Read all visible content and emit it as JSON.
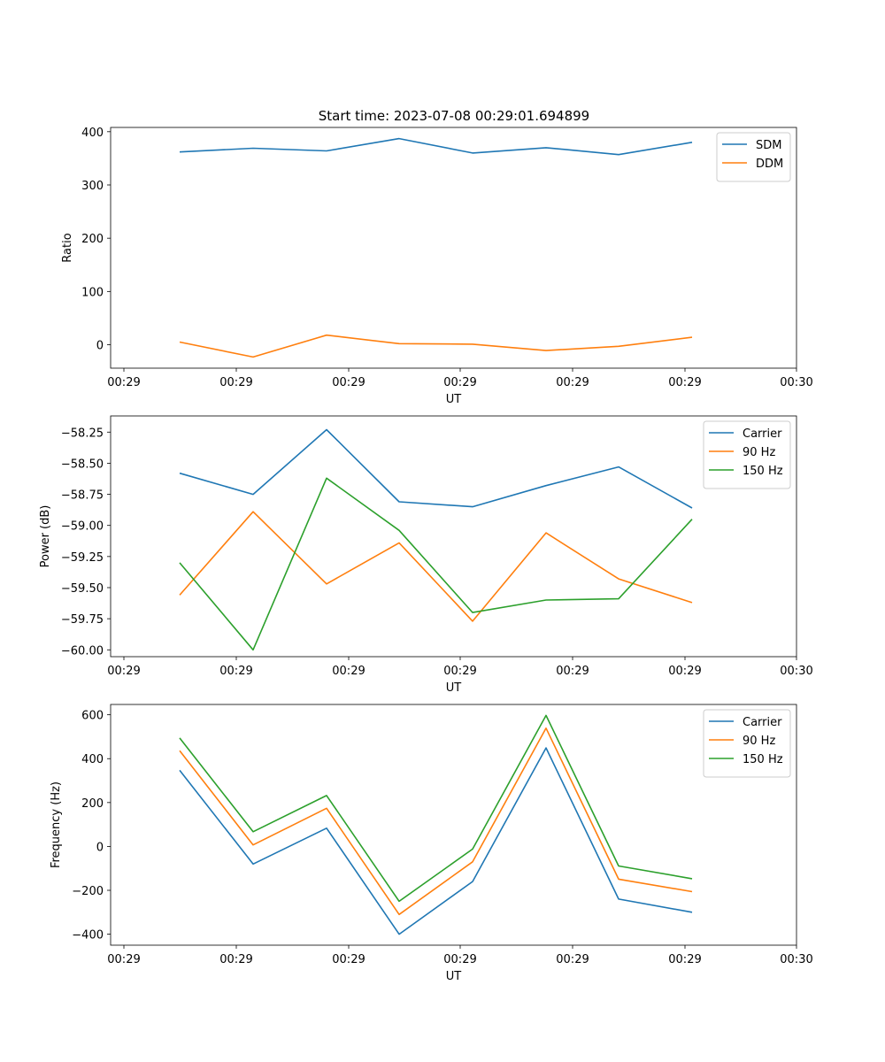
{
  "title": "Start time: 2023-07-08 00:29:01.694899",
  "chart_data": [
    {
      "type": "line",
      "xlabel": "UT",
      "ylabel": "Ratio",
      "xticks": [
        "00:29",
        "00:29",
        "00:29",
        "00:29",
        "00:29",
        "00:29",
        "00:29",
        "00:30"
      ],
      "yticks": [
        0,
        100,
        200,
        300,
        400
      ],
      "ylim": [
        -44,
        408
      ],
      "legend_position": "upper-right",
      "series": [
        {
          "name": "SDM",
          "color": "#1f77b4",
          "values": [
            362,
            369,
            364,
            387,
            360,
            370,
            357,
            380
          ]
        },
        {
          "name": "DDM",
          "color": "#ff7f0e",
          "values": [
            5,
            -23,
            18,
            2,
            1,
            -11,
            -3,
            14
          ]
        }
      ]
    },
    {
      "type": "line",
      "xlabel": "UT",
      "ylabel": "Power (dB)",
      "xticks": [
        "00:29",
        "00:29",
        "00:29",
        "00:29",
        "00:29",
        "00:29",
        "00:29",
        "00:30"
      ],
      "yticks": [
        -58.25,
        -58.5,
        -58.75,
        -59.0,
        -59.25,
        -59.5,
        -59.75,
        -60.0
      ],
      "ytick_labels": [
        "−58.25",
        "−58.50",
        "−58.75",
        "−59.00",
        "−59.25",
        "−59.50",
        "−59.75",
        "−60.00"
      ],
      "ylim": [
        -60.055,
        -58.12
      ],
      "legend_position": "upper-right",
      "series": [
        {
          "name": "Carrier",
          "color": "#1f77b4",
          "values": [
            -58.58,
            -58.75,
            -58.23,
            -58.81,
            -58.85,
            -58.68,
            -58.53,
            -58.86
          ]
        },
        {
          "name": "90 Hz",
          "color": "#ff7f0e",
          "values": [
            -59.56,
            -58.89,
            -59.47,
            -59.14,
            -59.77,
            -59.06,
            -59.43,
            -59.62
          ]
        },
        {
          "name": "150 Hz",
          "color": "#2ca02c",
          "values": [
            -59.3,
            -60.0,
            -58.62,
            -59.04,
            -59.7,
            -59.6,
            -59.59,
            -58.95
          ]
        }
      ]
    },
    {
      "type": "line",
      "xlabel": "UT",
      "ylabel": "Frequency (Hz)",
      "xticks": [
        "00:29",
        "00:29",
        "00:29",
        "00:29",
        "00:29",
        "00:29",
        "00:29",
        "00:30"
      ],
      "yticks": [
        -400,
        -200,
        0,
        200,
        400,
        600
      ],
      "ytick_labels": [
        "−400",
        "−200",
        "0",
        "200",
        "400",
        "600"
      ],
      "ylim": [
        -450,
        647
      ],
      "legend_position": "upper-right",
      "series": [
        {
          "name": "Carrier",
          "color": "#1f77b4",
          "values": [
            347,
            -80,
            83,
            -400,
            -160,
            449,
            -240,
            -300
          ]
        },
        {
          "name": "90 Hz",
          "color": "#ff7f0e",
          "values": [
            436,
            7,
            174,
            -310,
            -70,
            539,
            -149,
            -206
          ]
        },
        {
          "name": "150 Hz",
          "color": "#2ca02c",
          "values": [
            494,
            67,
            232,
            -250,
            -12,
            597,
            -89,
            -147
          ]
        }
      ]
    }
  ]
}
